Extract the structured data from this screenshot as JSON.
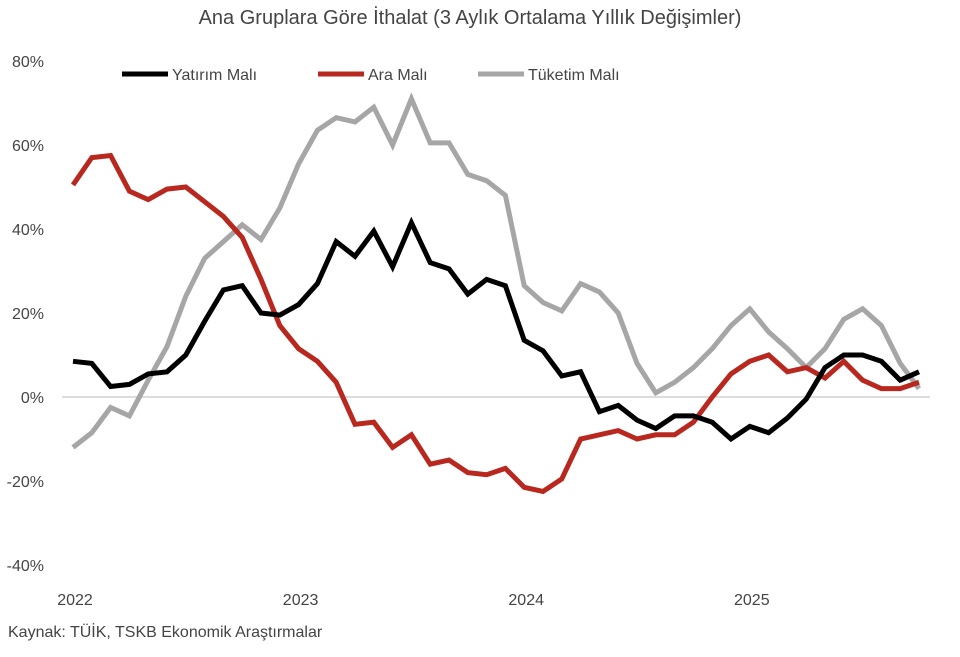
{
  "chart_data": {
    "type": "line",
    "title": "Ana Gruplara Göre İthalat (3 Aylık Ortalama Yıllık Değişimler)",
    "xlabel": "",
    "ylabel": "",
    "ylim": [
      -40,
      80
    ],
    "yticks": [
      80,
      60,
      40,
      20,
      0,
      -20,
      -40
    ],
    "ytick_labels": [
      "80%",
      "60%",
      "40%",
      "20%",
      "0%",
      "-20%",
      "-40%"
    ],
    "x_start": "2022-01",
    "x_end": "2025-10",
    "xtick_labels": [
      "2022",
      "2023",
      "2024",
      "2025"
    ],
    "legend_position": "top",
    "grid": false,
    "series": [
      {
        "name": "Yatırım Malı",
        "color": "#000000",
        "values": [
          8.5,
          8,
          2.5,
          3,
          5.5,
          6,
          10,
          18,
          25.5,
          26.5,
          20,
          19.5,
          22,
          27,
          37,
          33.5,
          39.5,
          31,
          41.5,
          32,
          30.5,
          24.5,
          28,
          26.5,
          13.5,
          11,
          5,
          6,
          -3.5,
          -2,
          -5.5,
          -7.5,
          -4.5,
          -4.5,
          -6,
          -10,
          -7,
          -8.5,
          -5,
          -0.5,
          7,
          10,
          10,
          8.5,
          4,
          6
        ]
      },
      {
        "name": "Ara Malı",
        "color": "#b8281f",
        "values": [
          50.5,
          57,
          57.5,
          49,
          47,
          49.5,
          50,
          46.5,
          43,
          38,
          28,
          17,
          11.5,
          8.5,
          3.5,
          -6.5,
          -6,
          -12,
          -9,
          -16,
          -15,
          -18,
          -18.5,
          -17,
          -21.5,
          -22.5,
          -19.5,
          -10,
          -9,
          -8,
          -10,
          -9,
          -9,
          -6,
          0,
          5.5,
          8.5,
          10,
          6,
          7,
          4.5,
          8.5,
          4,
          2,
          2,
          3.5
        ]
      },
      {
        "name": "Tüketim Malı",
        "color": "#a6a6a6",
        "values": [
          -12,
          -8.5,
          -2.5,
          -4.5,
          4,
          12,
          24,
          33,
          37,
          41,
          37.5,
          45,
          55.5,
          63.5,
          66.5,
          65.5,
          69,
          60,
          71,
          60.5,
          60.5,
          53,
          51.5,
          48,
          26.5,
          22.5,
          20.5,
          27,
          25,
          20,
          8,
          1,
          3.5,
          7,
          11.5,
          17,
          21,
          15.5,
          11.5,
          7,
          11.5,
          18.5,
          21,
          17,
          8,
          2
        ]
      }
    ]
  },
  "source": "Kaynak: TÜİK, TSKB Ekonomik Araştırmalar"
}
